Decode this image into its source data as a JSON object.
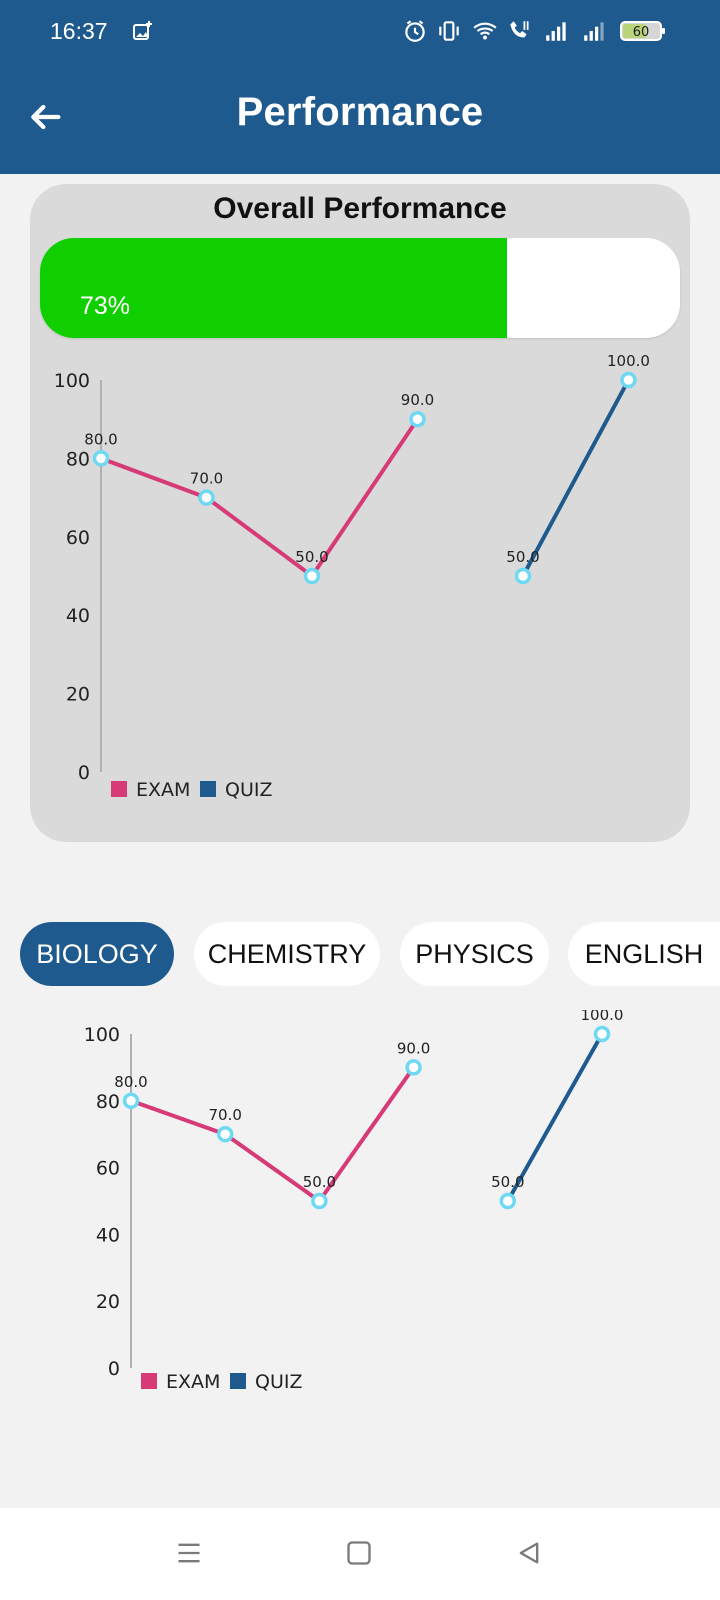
{
  "status_bar": {
    "time": "16:37",
    "battery": "60",
    "icons": [
      "image-add-icon",
      "alarm-icon",
      "vibrate-icon",
      "wifi-icon",
      "call-icon",
      "signal-icon",
      "signal-icon",
      "battery-icon"
    ]
  },
  "app_bar": {
    "title": "Performance",
    "back_icon": "back-arrow-icon"
  },
  "overall": {
    "title": "Overall Performance",
    "progress_label": "73%",
    "progress_value": 73,
    "progress_color": "#10cf00"
  },
  "tabs": [
    {
      "label": "BIOLOGY",
      "active": true
    },
    {
      "label": "CHEMISTRY",
      "active": false
    },
    {
      "label": "PHYSICS",
      "active": false
    },
    {
      "label": "ENGLISH",
      "active": false
    }
  ],
  "chart_data": [
    {
      "type": "line",
      "ylim": [
        0,
        100
      ],
      "yticks": [
        "0",
        "20",
        "40",
        "60",
        "80",
        "100"
      ],
      "grid": false,
      "legend_position": "bottom-left",
      "series": [
        {
          "name": "EXAM",
          "color": "#d63a77",
          "points": [
            [
              0,
              80
            ],
            [
              1,
              70
            ],
            [
              2,
              50
            ],
            [
              3,
              90
            ]
          ],
          "labels": [
            "80.0",
            "70.0",
            "50.0",
            "90.0"
          ]
        },
        {
          "name": "QUIZ",
          "color": "#1f5a8e",
          "points": [
            [
              4,
              50
            ],
            [
              5,
              100
            ]
          ],
          "labels": [
            "50.0",
            "100.0"
          ]
        }
      ]
    },
    {
      "type": "line",
      "ylim": [
        0,
        100
      ],
      "yticks": [
        "0",
        "20",
        "40",
        "60",
        "80",
        "100"
      ],
      "grid": false,
      "legend_position": "bottom-left",
      "series": [
        {
          "name": "EXAM",
          "color": "#d63a77",
          "points": [
            [
              0,
              80
            ],
            [
              1,
              70
            ],
            [
              2,
              50
            ],
            [
              3,
              90
            ]
          ],
          "labels": [
            "80.0",
            "70.0",
            "50.0",
            "90.0"
          ]
        },
        {
          "name": "QUIZ",
          "color": "#1f5a8e",
          "points": [
            [
              4,
              50
            ],
            [
              5,
              100
            ]
          ],
          "labels": [
            "50.0",
            "100.0"
          ]
        }
      ]
    }
  ],
  "nav_bar": {
    "items": [
      "menu-icon",
      "home-square-icon",
      "back-triangle-icon"
    ]
  }
}
